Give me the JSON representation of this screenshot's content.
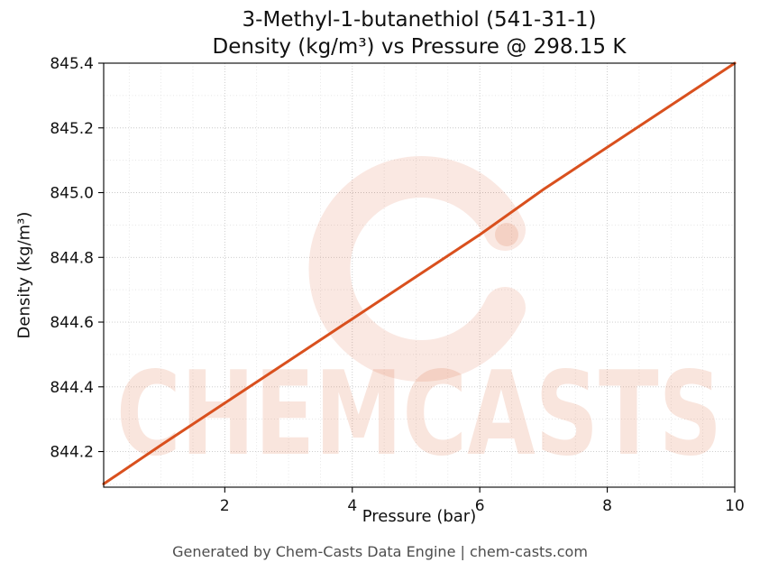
{
  "figure": {
    "title_line1": "3-Methyl-1-butanethiol (541-31-1)",
    "title_line2": "Density (kg/m³) vs Pressure @ 298.15 K",
    "footer": "Generated by Chem-Casts Data Engine | chem-casts.com"
  },
  "watermark": {
    "text": "CHEMCASTS",
    "color": "#d9501e"
  },
  "chart_data": {
    "type": "line",
    "title": "3-Methyl-1-butanethiol (541-31-1) Density (kg/m³) vs Pressure @ 298.15 K",
    "xlabel": "Pressure (bar)",
    "ylabel": "Density (kg/m³)",
    "xlim": [
      0.1,
      10
    ],
    "ylim": [
      844.09,
      845.4
    ],
    "x_ticks": [
      2,
      4,
      6,
      8,
      10
    ],
    "x_tick_labels": [
      "2",
      "4",
      "6",
      "8",
      "10"
    ],
    "y_ticks": [
      844.2,
      844.4,
      844.6,
      844.8,
      845.0,
      845.2,
      845.4
    ],
    "y_tick_labels": [
      "844.2",
      "844.4",
      "844.6",
      "844.8",
      "845.0",
      "845.2",
      "845.4"
    ],
    "x_minor_step": 0.5,
    "y_minor_step": 0.1,
    "grid": true,
    "legend": false,
    "line_color": "#d9501e",
    "line_width": 3,
    "series": [
      {
        "name": "Density vs Pressure @ 298.15 K",
        "x": [
          0.1,
          1,
          2,
          3,
          4,
          5,
          6,
          7,
          8,
          9,
          10
        ],
        "y": [
          844.1,
          844.22,
          844.35,
          844.48,
          844.61,
          844.74,
          844.87,
          845.01,
          845.14,
          845.27,
          845.4
        ]
      }
    ]
  }
}
